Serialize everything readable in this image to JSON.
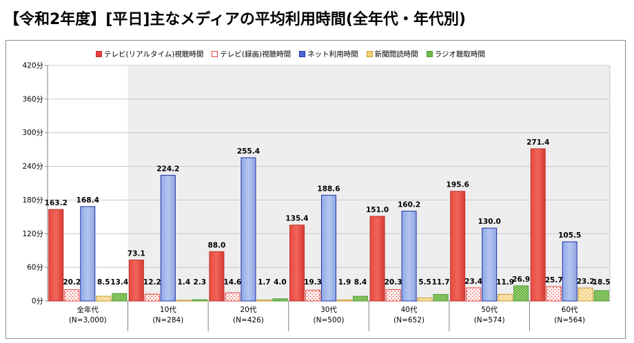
{
  "title": "【令和2年度】[平日]主なメディアの平均利用時間(全年代・年代別)",
  "chart_data": {
    "type": "bar",
    "categories": [
      {
        "name": "全年代",
        "n": "(N=3,000)"
      },
      {
        "name": "10代",
        "n": "(N=284)"
      },
      {
        "name": "20代",
        "n": "(N=426)"
      },
      {
        "name": "30代",
        "n": "(N=500)"
      },
      {
        "name": "40代",
        "n": "(N=652)"
      },
      {
        "name": "50代",
        "n": "(N=574)"
      },
      {
        "name": "60代",
        "n": "(N=564)"
      }
    ],
    "series": [
      {
        "name": "テレビ(リアルタイム)視聴時間",
        "color": "#e8413c",
        "values": [
          163.2,
          73.1,
          88.0,
          135.4,
          151.0,
          195.6,
          271.4
        ],
        "labels": [
          "163.2",
          "73.1",
          "88.0",
          "135.4",
          "151.0",
          "195.6",
          "271.4"
        ]
      },
      {
        "name": "テレビ(録画)視聴時間",
        "color": "#e8413c",
        "values": [
          20.2,
          12.2,
          14.6,
          19.3,
          20.3,
          23.4,
          25.7
        ],
        "labels": [
          "20.2",
          "12.2",
          "14.6",
          "19.3",
          "20.3",
          "23.4",
          "25.7"
        ]
      },
      {
        "name": "ネット利用時間",
        "color": "#2a3fbf",
        "values": [
          168.4,
          224.2,
          255.4,
          188.6,
          160.2,
          130.0,
          105.5
        ],
        "labels": [
          "168.4",
          "224.2",
          "255.4",
          "188.6",
          "160.2",
          "130.0",
          "105.5"
        ]
      },
      {
        "name": "新聞閲読時間",
        "color": "#e6b84a",
        "values": [
          8.5,
          1.4,
          1.7,
          1.9,
          5.5,
          11.9,
          23.2
        ],
        "labels": [
          "8.5",
          "1.4",
          "1.7",
          "1.9",
          "5.5",
          "11.9",
          "23.2"
        ]
      },
      {
        "name": "ラジオ聴取時間",
        "color": "#6fb84a",
        "values": [
          13.4,
          2.3,
          4.0,
          8.4,
          11.7,
          26.9,
          18.5
        ],
        "labels": [
          "13.4",
          "2.3",
          "4.0",
          "8.4",
          "11.7",
          "26.9",
          "18.5"
        ]
      }
    ],
    "yticks": [
      "0分",
      "60分",
      "120分",
      "180分",
      "240分",
      "300分",
      "360分",
      "420分"
    ],
    "ylim": [
      0,
      420
    ],
    "grid": true,
    "legend_placement": "top"
  }
}
